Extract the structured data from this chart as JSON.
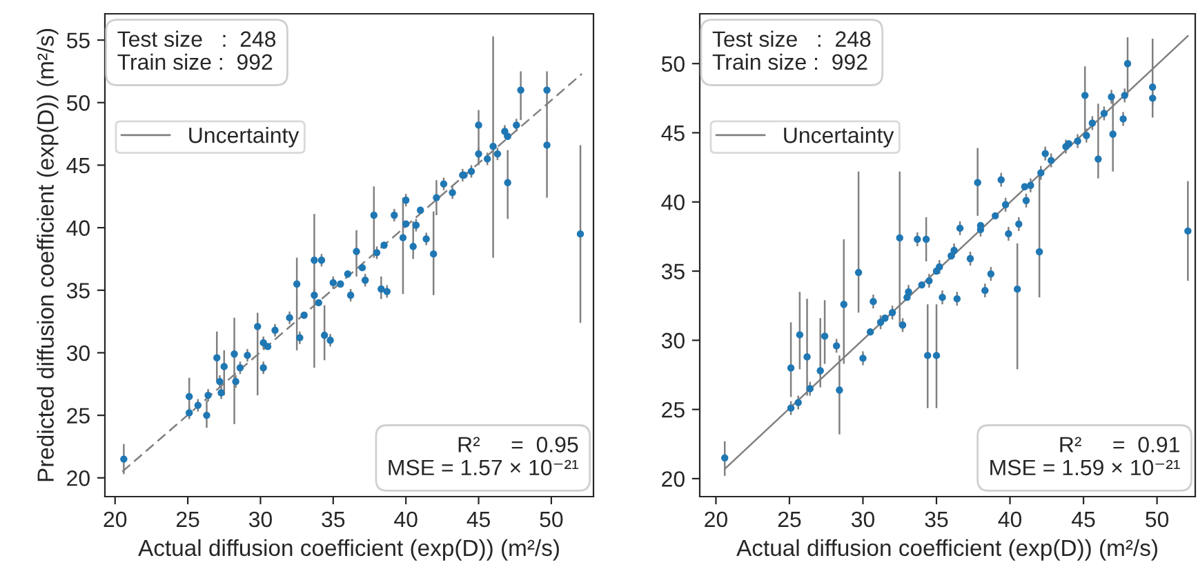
{
  "chart_data": [
    {
      "type": "scatter",
      "xlabel": "Actual diffusion coefficient (exp(D)) (m²/s)",
      "ylabel": "Predicted diffusion coefficient (exp(D)) (m²/s)",
      "xlim": [
        19.3,
        52.9
      ],
      "ylim": [
        18.5,
        57.1
      ],
      "xticks": [
        20,
        25,
        30,
        35,
        40,
        45,
        50
      ],
      "yticks": [
        20,
        25,
        30,
        35,
        40,
        45,
        50,
        55
      ],
      "grid": false,
      "legend": "top left",
      "annotations": [
        "Test size   :  248\nTrain size :  992",
        "R²     =  0.95\nMSE = 1.57 × 10⁻²¹"
      ],
      "series": [
        {
          "name": "Uncertainty",
          "marker": "circle",
          "color": "#808080",
          "colors": [
            "#1f77b4",
            "#1f77b4",
            "#1f77b4",
            "#1f77b4",
            "#1f77b4",
            "#1f77b4",
            "#1f77b4",
            "#1f77b4",
            "#1f77b4",
            "#1f77b4",
            "#1f77b4",
            "#1f77b4",
            "#1f77b4",
            "#1f77b4",
            "#1f77b4",
            "#1f77b4",
            "#1f77b4",
            "#1f77b4",
            "#1f77b4",
            "#1f77b4",
            "#1f77b4",
            "#1f77b4",
            "#1f77b4",
            "#1f77b4",
            "#1f77b4",
            "#1f77b4",
            "#1f77b4",
            "#1f77b4",
            "#1f77b4",
            "#1f77b4",
            "#1f77b4",
            "#1f77b4",
            "#1f77b4",
            "#1f77b4",
            "#1f77b4",
            "#1f77b4",
            "#1f77b4",
            "#1f77b4",
            "#1f77b4",
            "#1f77b4",
            "#1f77b4",
            "#1f77b4",
            "#1f77b4",
            "#1f77b4",
            "#1f77b4",
            "#1f77b4",
            "#1f77b4",
            "#1f77b4",
            "#1f77b4",
            "#1f77b4",
            "#1f77b4",
            "#1f77b4",
            "#1f77b4",
            "#1f77b4",
            "#1f77b4",
            "#1f77b4",
            "#1f77b4",
            "#1f77b4",
            "#1f77b4",
            "#1f77b4",
            "#1f77b4",
            "#1f77b4",
            "#1f77b4",
            "#1f77b4",
            "#1f77b4",
            "#1f77b4",
            "#1f77b4",
            "#1f77b4",
            "#1f77b4"
          ],
          "x": [
            20.6,
            25.1,
            25.1,
            25.7,
            26.3,
            26.4,
            27.0,
            27.2,
            27.3,
            27.5,
            28.2,
            28.3,
            28.6,
            29.1,
            29.8,
            30.2,
            30.2,
            31.0,
            32.0,
            32.5,
            32.7,
            33.7,
            34.2,
            34.4,
            34.8,
            33.7,
            35.0,
            36.2,
            36.6,
            37.2,
            37.8,
            38.0,
            38.3,
            38.7,
            39.2,
            39.8,
            40.0,
            40.5,
            40.7,
            41.4,
            41.9,
            42.1,
            42.6,
            43.2,
            43.9,
            44.5,
            45.0,
            45.0,
            45.6,
            46.0,
            46.3,
            46.8,
            47.0,
            47.6,
            47.9,
            49.7,
            49.7,
            52.0,
            30.5,
            33.0,
            34.0,
            35.5,
            36.0,
            37.0,
            38.5,
            40.0,
            41.0,
            44.0,
            47.0
          ],
          "values": [
            21.5,
            25.2,
            26.5,
            25.8,
            25.0,
            26.6,
            29.6,
            27.7,
            26.8,
            28.9,
            29.9,
            27.7,
            28.8,
            29.8,
            32.1,
            28.8,
            30.8,
            31.8,
            32.8,
            35.5,
            31.2,
            37.4,
            37.4,
            31.4,
            31.0,
            34.6,
            35.6,
            34.6,
            38.1,
            35.8,
            41.0,
            38.0,
            35.1,
            34.9,
            41.0,
            39.2,
            42.2,
            38.5,
            40.2,
            39.1,
            37.9,
            42.4,
            43.5,
            42.8,
            44.2,
            44.5,
            48.2,
            45.9,
            45.5,
            46.5,
            45.9,
            47.7,
            43.6,
            48.2,
            51.0,
            51.0,
            46.6,
            39.5,
            30.5,
            33.0,
            34.0,
            35.5,
            36.3,
            36.8,
            38.6,
            40.3,
            41.4,
            44.2,
            47.3
          ],
          "errors": [
            [
              20.3,
              22.7
            ],
            0.5,
            [
              24.9,
              28.0
            ],
            0.5,
            [
              24.0,
              26.2
            ],
            0.5,
            [
              27.7,
              31.7
            ],
            0.5,
            0.5,
            [
              26.6,
              30.2
            ],
            [
              24.3,
              32.8
            ],
            0.5,
            0.5,
            0.5,
            [
              26.6,
              33.2
            ],
            0.5,
            0.5,
            0.5,
            0.5,
            [
              30.2,
              37.6
            ],
            0.5,
            [
              28.8,
              41.1
            ],
            0.5,
            [
              29.4,
              33.8
            ],
            0.5,
            0.5,
            0.5,
            0.5,
            [
              36.1,
              39.8
            ],
            0.5,
            [
              37.6,
              43.3
            ],
            0.5,
            [
              34.3,
              36.1
            ],
            0.5,
            0.5,
            [
              34.7,
              42.4
            ],
            0.5,
            [
              37.5,
              40.5
            ],
            0.5,
            0.5,
            [
              34.6,
              41.3
            ],
            [
              41.0,
              43.8
            ],
            0.5,
            0.5,
            0.5,
            0.5,
            [
              45.0,
              49.4
            ],
            0.5,
            0.5,
            [
              37.6,
              55.3
            ],
            0.5,
            0.5,
            [
              40.7,
              46.2
            ],
            0.5,
            [
              48.6,
              52.5
            ],
            [
              48.6,
              52.5
            ],
            [
              42.4,
              48.6
            ],
            [
              32.4,
              46.6
            ],
            null,
            null,
            null,
            null,
            null,
            null,
            null,
            null,
            null,
            null,
            null
          ]
        },
        {
          "type": "line",
          "line_style": "dashed",
          "color": "#808080",
          "x": [
            20.5,
            52.1
          ],
          "values": [
            20.5,
            52.3
          ]
        }
      ]
    },
    {
      "type": "scatter",
      "xlabel": "Actual diffusion coefficient (exp(D)) (m²/s)",
      "xlim": [
        18.9,
        52.6
      ],
      "ylim": [
        18.7,
        53.6
      ],
      "xticks": [
        20,
        25,
        30,
        35,
        40,
        45,
        50
      ],
      "yticks": [
        20,
        25,
        30,
        35,
        40,
        45,
        50
      ],
      "grid": false,
      "legend": "top left",
      "annotations": [
        "Test size   :  248\nTrain size :  992",
        "R²     =  0.91\nMSE = 1.59 × 10⁻²¹"
      ],
      "series": [
        {
          "name": "Uncertainty",
          "marker": "circle",
          "color": "#808080",
          "colors": [
            "#1f77b4",
            "#1f77b4",
            "#1f77b4",
            "#1f77b4",
            "#1f77b4",
            "#1f77b4",
            "#1f77b4",
            "#1f77b4",
            "#1f77b4",
            "#1f77b4",
            "#1f77b4",
            "#1f77b4",
            "#1f77b4",
            "#1f77b4",
            "#1f77b4",
            "#1f77b4",
            "#1f77b4",
            "#1f77b4",
            "#1f77b4",
            "#1f77b4",
            "#1f77b4",
            "#1f77b4",
            "#1f77b4",
            "#1f77b4",
            "#1f77b4",
            "#1f77b4",
            "#1f77b4",
            "#1f77b4",
            "#1f77b4",
            "#1f77b4",
            "#1f77b4",
            "#1f77b4",
            "#1f77b4",
            "#1f77b4",
            "#1f77b4",
            "#1f77b4",
            "#1f77b4",
            "#1f77b4",
            "#1f77b4",
            "#1f77b4",
            "#1f77b4",
            "#1f77b4",
            "#1f77b4",
            "#1f77b4",
            "#1f77b4",
            "#1f77b4",
            "#1f77b4",
            "#1f77b4",
            "#1f77b4",
            "#1f77b4",
            "#1f77b4",
            "#1f77b4",
            "#1f77b4",
            "#1f77b4",
            "#1f77b4",
            "#1f77b4",
            "#1f77b4",
            "#1f77b4",
            "#1f77b4",
            "#1f77b4",
            "#1f77b4",
            "#1f77b4",
            "#1f77b4",
            "#1f77b4",
            "#1f77b4",
            "#1f77b4",
            "#1f77b4",
            "#1f77b4",
            "#1f77b4",
            "#1f77b4",
            "#1f77b4"
          ],
          "x": [
            20.6,
            25.1,
            25.6,
            25.1,
            25.7,
            26.2,
            26.4,
            27.1,
            27.4,
            28.2,
            28.4,
            28.7,
            29.7,
            30.0,
            30.7,
            31.2,
            32.0,
            32.5,
            32.7,
            33.1,
            33.7,
            34.3,
            34.4,
            35.0,
            34.5,
            35.2,
            35.4,
            36.4,
            36.6,
            36.2,
            37.3,
            37.8,
            38.0,
            38.3,
            38.7,
            39.4,
            39.7,
            39.9,
            40.5,
            40.6,
            41.1,
            41.4,
            42.0,
            42.1,
            42.4,
            42.8,
            43.8,
            44.6,
            45.1,
            45.2,
            45.6,
            46.0,
            46.4,
            46.9,
            47.0,
            47.7,
            48.0,
            47.8,
            49.7,
            49.7,
            52.1,
            30.5,
            31.5,
            33.0,
            34.0,
            35.0,
            36.0,
            38.0,
            39.0,
            41.0,
            44.0
          ],
          "values": [
            21.5,
            25.1,
            25.5,
            28.0,
            30.4,
            28.8,
            26.5,
            27.8,
            30.3,
            29.6,
            26.4,
            32.6,
            34.9,
            28.7,
            32.8,
            31.3,
            32.0,
            37.4,
            31.1,
            33.5,
            37.3,
            37.3,
            28.9,
            28.9,
            34.3,
            35.3,
            33.1,
            33.0,
            38.1,
            36.5,
            35.9,
            41.4,
            38.0,
            33.6,
            34.8,
            41.6,
            39.8,
            37.7,
            33.7,
            38.4,
            40.1,
            41.2,
            36.4,
            42.1,
            43.5,
            43.0,
            44.0,
            44.4,
            47.7,
            44.8,
            45.7,
            43.1,
            46.4,
            47.6,
            44.9,
            46.0,
            50.0,
            47.7,
            48.3,
            47.5,
            37.9,
            30.6,
            31.6,
            33.1,
            34.0,
            35.0,
            36.1,
            38.3,
            39.0,
            41.1,
            44.2
          ],
          "errors": [
            [
              20.2,
              22.7
            ],
            0.5,
            0.5,
            [
              25.9,
              31.3
            ],
            [
              27.9,
              33.5
            ],
            [
              26.0,
              33.0
            ],
            0.5,
            [
              26.6,
              31.6
            ],
            [
              28.3,
              32.9
            ],
            0.5,
            [
              23.2,
              28.9
            ],
            [
              28.3,
              37.3
            ],
            [
              32.0,
              42.2
            ],
            0.5,
            0.5,
            0.5,
            0.5,
            [
              31.0,
              42.2
            ],
            0.5,
            0.5,
            0.5,
            [
              35.7,
              38.9
            ],
            [
              25.1,
              32.6
            ],
            [
              25.1,
              32.6
            ],
            0.5,
            0.5,
            0.5,
            0.5,
            0.5,
            0.5,
            0.5,
            [
              39.0,
              43.9
            ],
            0.5,
            0.5,
            0.5,
            0.5,
            0.5,
            0.5,
            [
              27.9,
              37.0
            ],
            0.5,
            0.5,
            0.5,
            [
              33.1,
              42.0
            ],
            0.5,
            0.5,
            0.5,
            0.5,
            0.5,
            [
              44.7,
              49.8
            ],
            0.5,
            0.5,
            [
              41.7,
              47.1
            ],
            0.5,
            0.5,
            [
              42.2,
              47.8
            ],
            0.5,
            [
              47.7,
              51.9
            ],
            0.5,
            [
              46.1,
              51.8
            ],
            0.5,
            [
              34.3,
              41.5
            ],
            null,
            null,
            null,
            null,
            null,
            null,
            null,
            null,
            null,
            null
          ]
        },
        {
          "type": "line",
          "line_style": "solid",
          "color": "#808080",
          "x": [
            20.6,
            52.1
          ],
          "values": [
            20.7,
            52.0
          ]
        }
      ]
    }
  ]
}
